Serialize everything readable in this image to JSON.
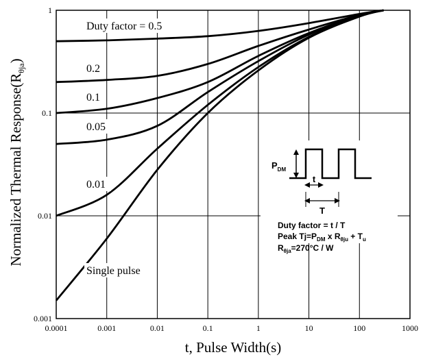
{
  "chart_data": {
    "type": "line",
    "title": "",
    "xlabel": "t, Pulse Width(s)",
    "ylabel_main": "Normalized Thermal Response(R",
    "ylabel_sub": "θja",
    "ylabel_close": ")",
    "xscale": "log",
    "yscale": "log",
    "xlim": [
      0.0001,
      1000
    ],
    "ylim": [
      0.001,
      1
    ],
    "grid": true,
    "x_ticks": [
      "0.0001",
      "0.001",
      "0.01",
      "0.1",
      "1",
      "10",
      "100",
      "1000"
    ],
    "y_ticks": [
      "0.001",
      "0.01",
      "0.1",
      "1"
    ],
    "series": [
      {
        "label_text": "Duty factor = 0.5",
        "x": [
          0.0001,
          0.001,
          0.01,
          0.1,
          1,
          10,
          100,
          300
        ],
        "y": [
          0.5,
          0.51,
          0.53,
          0.56,
          0.63,
          0.75,
          0.92,
          1.0
        ]
      },
      {
        "label_text": "0.2",
        "x": [
          0.0001,
          0.001,
          0.01,
          0.1,
          1,
          10,
          100,
          300
        ],
        "y": [
          0.2,
          0.21,
          0.23,
          0.3,
          0.45,
          0.65,
          0.9,
          1.0
        ]
      },
      {
        "label_text": "0.1",
        "x": [
          0.0001,
          0.001,
          0.01,
          0.1,
          1,
          10,
          100,
          300
        ],
        "y": [
          0.1,
          0.11,
          0.14,
          0.2,
          0.36,
          0.6,
          0.89,
          1.0
        ]
      },
      {
        "label_text": "0.05",
        "x": [
          0.0001,
          0.001,
          0.01,
          0.1,
          1,
          10,
          100,
          300
        ],
        "y": [
          0.05,
          0.055,
          0.075,
          0.16,
          0.32,
          0.58,
          0.88,
          1.0
        ]
      },
      {
        "label_text": "0.01",
        "x": [
          0.0001,
          0.001,
          0.01,
          0.1,
          1,
          10,
          100,
          300
        ],
        "y": [
          0.01,
          0.016,
          0.045,
          0.12,
          0.28,
          0.55,
          0.87,
          1.0
        ]
      },
      {
        "label_text": "Single pulse",
        "x": [
          0.0001,
          0.001,
          0.01,
          0.1,
          1,
          10,
          100,
          300
        ],
        "y": [
          0.0015,
          0.006,
          0.028,
          0.1,
          0.26,
          0.54,
          0.87,
          1.0
        ]
      }
    ],
    "inset": {
      "pdm_main": "P",
      "pdm_sub": "DM",
      "t_label": "t",
      "T_label": "T",
      "line1": "Duty factor = t / T",
      "line2_a": "Peak Tj=P",
      "line2_sub1": "DM",
      "line2_b": " x R",
      "line2_sub2": "θju",
      "line2_c": " + T",
      "line2_sub3": "u",
      "line3_a": "R",
      "line3_sub": "θja",
      "line3_b": "=270°C / W"
    }
  }
}
